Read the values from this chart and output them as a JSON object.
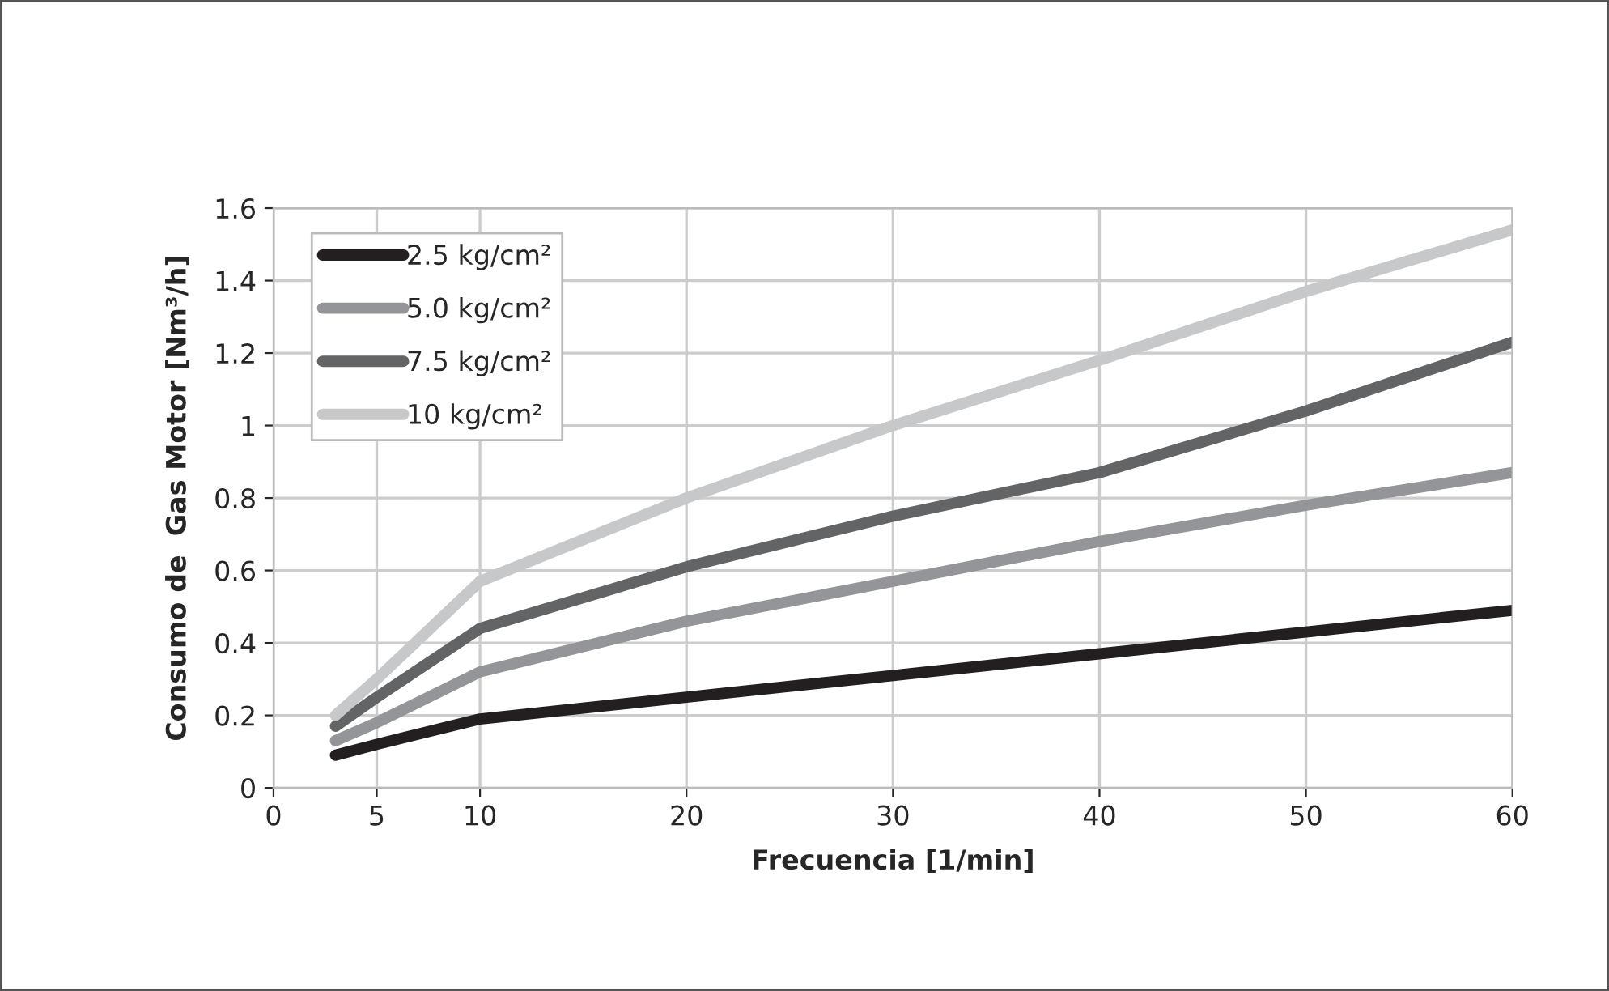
{
  "chart_data": {
    "type": "line",
    "xlabel": "Frecuencia [1/min]",
    "ylabel": "Consumo de  Gas Motor [Nm³/h]",
    "x": [
      3,
      5,
      10,
      20,
      30,
      40,
      50,
      60
    ],
    "series": [
      {
        "name": "2.5 kg/cm²",
        "color": "#231f20",
        "values": [
          0.09,
          0.12,
          0.19,
          0.25,
          0.31,
          0.37,
          0.43,
          0.49
        ]
      },
      {
        "name": "5.0 kg/cm²",
        "color": "#939598",
        "values": [
          0.13,
          0.18,
          0.32,
          0.46,
          0.57,
          0.68,
          0.78,
          0.87
        ]
      },
      {
        "name": "7.5 kg/cm²",
        "color": "#636466",
        "values": [
          0.17,
          0.25,
          0.44,
          0.61,
          0.75,
          0.87,
          1.04,
          1.23
        ]
      },
      {
        "name": "10 kg/cm²",
        "color": "#c7c8ca",
        "values": [
          0.2,
          0.3,
          0.57,
          0.8,
          1.0,
          1.18,
          1.37,
          1.54
        ]
      }
    ],
    "xlim": [
      0,
      60
    ],
    "xticks": [
      0,
      5,
      10,
      20,
      30,
      40,
      50,
      60
    ],
    "ylim": [
      0,
      1.6
    ],
    "yticks": [
      {
        "value": 0,
        "label": "0"
      },
      0.2,
      0.4,
      0.6,
      0.8,
      {
        "value": 1,
        "label": "1"
      },
      1.2,
      1.4,
      1.6
    ],
    "grid": true,
    "legend": "top left",
    "line_style": "solid",
    "marker": "none"
  }
}
